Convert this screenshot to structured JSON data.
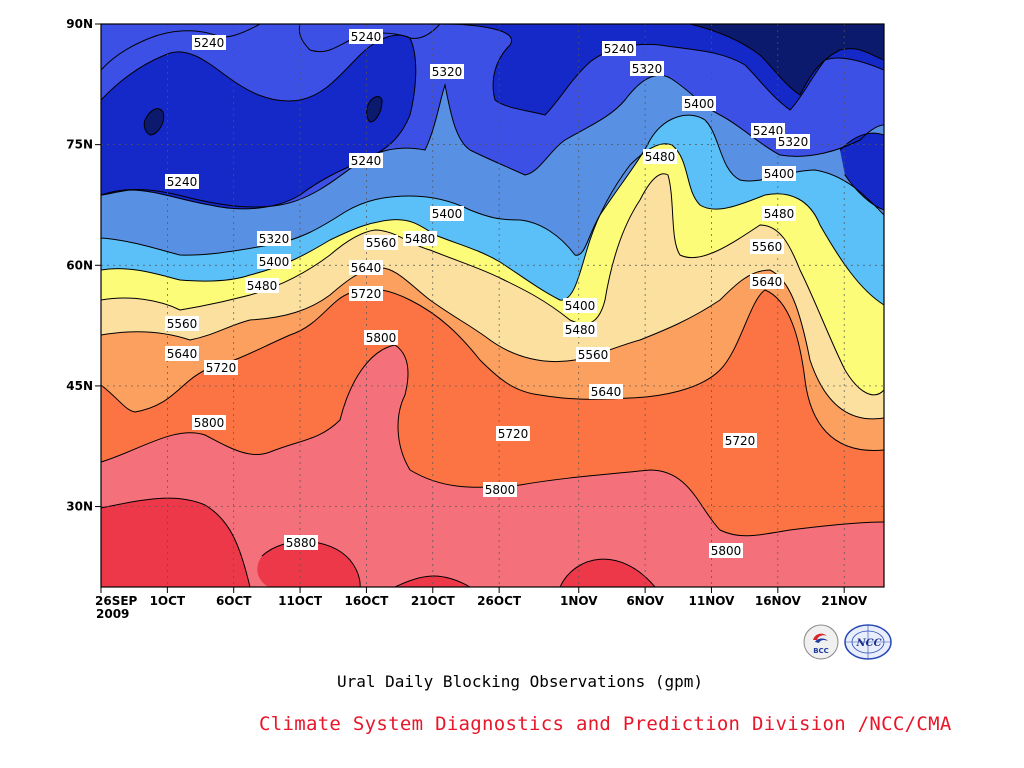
{
  "chart_data": {
    "type": "heatmap",
    "title": "Ural Daily Blocking Observations (gpm)",
    "x_ticks": [
      "26SEP",
      "1OCT",
      "6OCT",
      "11OCT",
      "16OCT",
      "21OCT",
      "26OCT",
      "1NOV",
      "6NOV",
      "11NOV",
      "16NOV",
      "21NOV"
    ],
    "x_year": "2009",
    "y_ticks": [
      "30N",
      "45N",
      "60N",
      "75N",
      "90N"
    ],
    "xlim": [
      "2009-09-26",
      "2009-11-24"
    ],
    "ylim": [
      20,
      90
    ],
    "grid": true,
    "contour_levels": [
      5240,
      5320,
      5400,
      5480,
      5560,
      5640,
      5720,
      5800,
      5880
    ],
    "fill_colors": [
      "#0c1a6e",
      "#1528c8",
      "#3c50e6",
      "#5890e4",
      "#5cc0f8",
      "#fcfc78",
      "#fce0a0",
      "#fca060",
      "#fc7444",
      "#f4707a",
      "#ec3848"
    ],
    "contour_labels": [
      {
        "text": "5240"
      },
      {
        "text": "5240"
      },
      {
        "text": "5320"
      },
      {
        "text": "5240"
      },
      {
        "text": "5320"
      },
      {
        "text": "5400"
      },
      {
        "text": "5240"
      },
      {
        "text": "5320"
      },
      {
        "text": "5240"
      },
      {
        "text": "5240"
      },
      {
        "text": "5480"
      },
      {
        "text": "5400"
      },
      {
        "text": "5400"
      },
      {
        "text": "5480"
      },
      {
        "text": "5320"
      },
      {
        "text": "5560"
      },
      {
        "text": "5480"
      },
      {
        "text": "5400"
      },
      {
        "text": "5640"
      },
      {
        "text": "5560"
      },
      {
        "text": "5480"
      },
      {
        "text": "5720"
      },
      {
        "text": "5640"
      },
      {
        "text": "5400"
      },
      {
        "text": "5560"
      },
      {
        "text": "5480"
      },
      {
        "text": "5800"
      },
      {
        "text": "5560"
      },
      {
        "text": "5640"
      },
      {
        "text": "5720"
      },
      {
        "text": "5640"
      },
      {
        "text": "5800"
      },
      {
        "text": "5720"
      },
      {
        "text": "5720"
      },
      {
        "text": "5800"
      },
      {
        "text": "5880"
      },
      {
        "text": "5800"
      }
    ]
  },
  "footer": {
    "caption": "Ural Daily Blocking Observations (gpm)",
    "credit": "Climate System Diagnostics and Prediction Division /NCC/CMA",
    "logo_left_text": "BCC",
    "logo_right_text": "NCC"
  }
}
